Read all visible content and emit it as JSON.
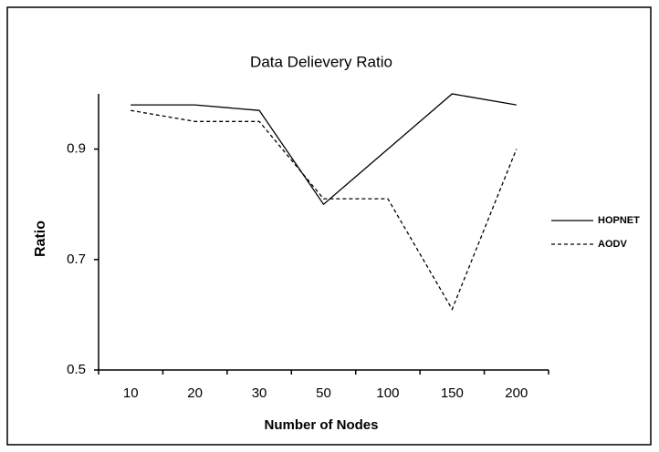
{
  "chart_data": {
    "type": "line",
    "title": "Data Delievery Ratio",
    "x_label": "Number of Nodes",
    "y_label": "Ratio",
    "categories": [
      "10",
      "20",
      "30",
      "50",
      "100",
      "150",
      "200"
    ],
    "series": [
      {
        "name": "HOPNET",
        "color": "#000000",
        "dashed": false,
        "values": [
          0.98,
          0.98,
          0.97,
          0.8,
          0.9,
          1.0,
          0.98
        ]
      },
      {
        "name": "AODV",
        "color": "#000000",
        "dashed": true,
        "values": [
          0.97,
          0.95,
          0.95,
          0.81,
          0.81,
          0.61,
          0.9
        ]
      }
    ],
    "ylim": [
      0.5,
      1.0
    ],
    "yticks": [
      0.5,
      0.7,
      0.9
    ],
    "grid": false,
    "legend": "right"
  }
}
